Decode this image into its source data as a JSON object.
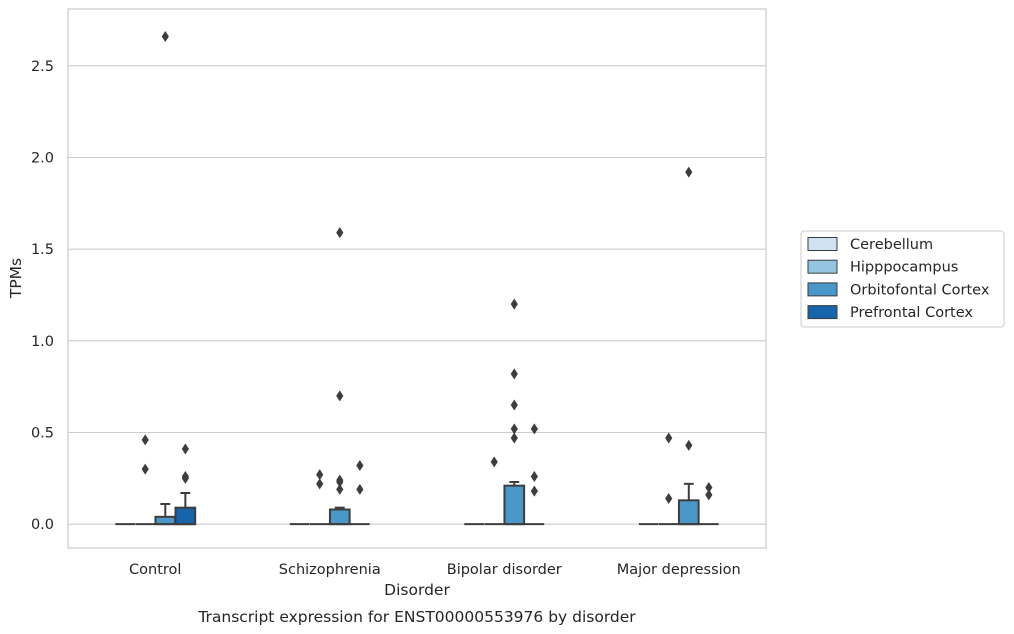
{
  "chart_data": {
    "type": "box",
    "caption": "Transcript expression for ENST00000553976 by disorder",
    "xlabel": "Disorder",
    "ylabel": "TPMs",
    "ylim": [
      -0.13,
      2.81
    ],
    "yticks": [
      0.0,
      0.5,
      1.0,
      1.5,
      2.0,
      2.5
    ],
    "ytick_labels": [
      "0.0",
      "0.5",
      "1.0",
      "1.5",
      "2.0",
      "2.5"
    ],
    "grid": "horizontal",
    "legend_position": "right-center",
    "categories": [
      "Control",
      "Schizophrenia",
      "Bipolar disorder",
      "Major depression"
    ],
    "series": [
      {
        "name": "Cerebellum",
        "color": "#d0e1f2",
        "boxes": [
          {
            "q1": 0,
            "median": 0,
            "q3": 0,
            "whisker_low": 0,
            "whisker_high": 0,
            "outliers": []
          },
          {
            "q1": 0,
            "median": 0,
            "q3": 0,
            "whisker_low": 0,
            "whisker_high": 0,
            "outliers": []
          },
          {
            "q1": 0,
            "median": 0,
            "q3": 0,
            "whisker_low": 0,
            "whisker_high": 0,
            "outliers": []
          },
          {
            "q1": 0,
            "median": 0,
            "q3": 0,
            "whisker_low": 0,
            "whisker_high": 0,
            "outliers": []
          }
        ]
      },
      {
        "name": "Hipppocampus",
        "color": "#94c4df",
        "boxes": [
          {
            "q1": 0,
            "median": 0,
            "q3": 0,
            "whisker_low": 0,
            "whisker_high": 0,
            "outliers": [
              0.46,
              0.3
            ]
          },
          {
            "q1": 0,
            "median": 0,
            "q3": 0,
            "whisker_low": 0,
            "whisker_high": 0,
            "outliers": [
              0.27,
              0.22
            ]
          },
          {
            "q1": 0,
            "median": 0,
            "q3": 0,
            "whisker_low": 0,
            "whisker_high": 0,
            "outliers": [
              0.34
            ]
          },
          {
            "q1": 0,
            "median": 0,
            "q3": 0,
            "whisker_low": 0,
            "whisker_high": 0,
            "outliers": [
              0.47,
              0.14
            ]
          }
        ]
      },
      {
        "name": "Orbitofontal Cortex",
        "color": "#4a98c9",
        "boxes": [
          {
            "q1": 0,
            "median": 0,
            "q3": 0.04,
            "whisker_low": 0,
            "whisker_high": 0.11,
            "outliers": [
              2.66
            ]
          },
          {
            "q1": 0,
            "median": 0,
            "q3": 0.08,
            "whisker_low": 0,
            "whisker_high": 0.09,
            "outliers": [
              0.23,
              0.19,
              1.59,
              0.7,
              0.24
            ]
          },
          {
            "q1": 0,
            "median": 0,
            "q3": 0.21,
            "whisker_low": 0,
            "whisker_high": 0.23,
            "outliers": [
              0.65,
              0.47,
              1.2,
              0.82,
              0.52
            ]
          },
          {
            "q1": 0,
            "median": 0,
            "q3": 0.13,
            "whisker_low": 0,
            "whisker_high": 0.22,
            "outliers": [
              1.92,
              0.43
            ]
          }
        ]
      },
      {
        "name": "Prefrontal Cortex",
        "color": "#1764ab",
        "boxes": [
          {
            "q1": 0,
            "median": 0,
            "q3": 0.09,
            "whisker_low": 0,
            "whisker_high": 0.17,
            "outliers": [
              0.41,
              0.26,
              0.25
            ]
          },
          {
            "q1": 0,
            "median": 0,
            "q3": 0,
            "whisker_low": 0,
            "whisker_high": 0,
            "outliers": [
              0.32,
              0.19
            ]
          },
          {
            "q1": 0,
            "median": 0,
            "q3": 0,
            "whisker_low": 0,
            "whisker_high": 0,
            "outliers": [
              0.52,
              0.26,
              0.18
            ]
          },
          {
            "q1": 0,
            "median": 0,
            "q3": 0,
            "whisker_low": 0,
            "whisker_high": 0,
            "outliers": [
              0.2,
              0.16
            ]
          }
        ]
      }
    ]
  }
}
